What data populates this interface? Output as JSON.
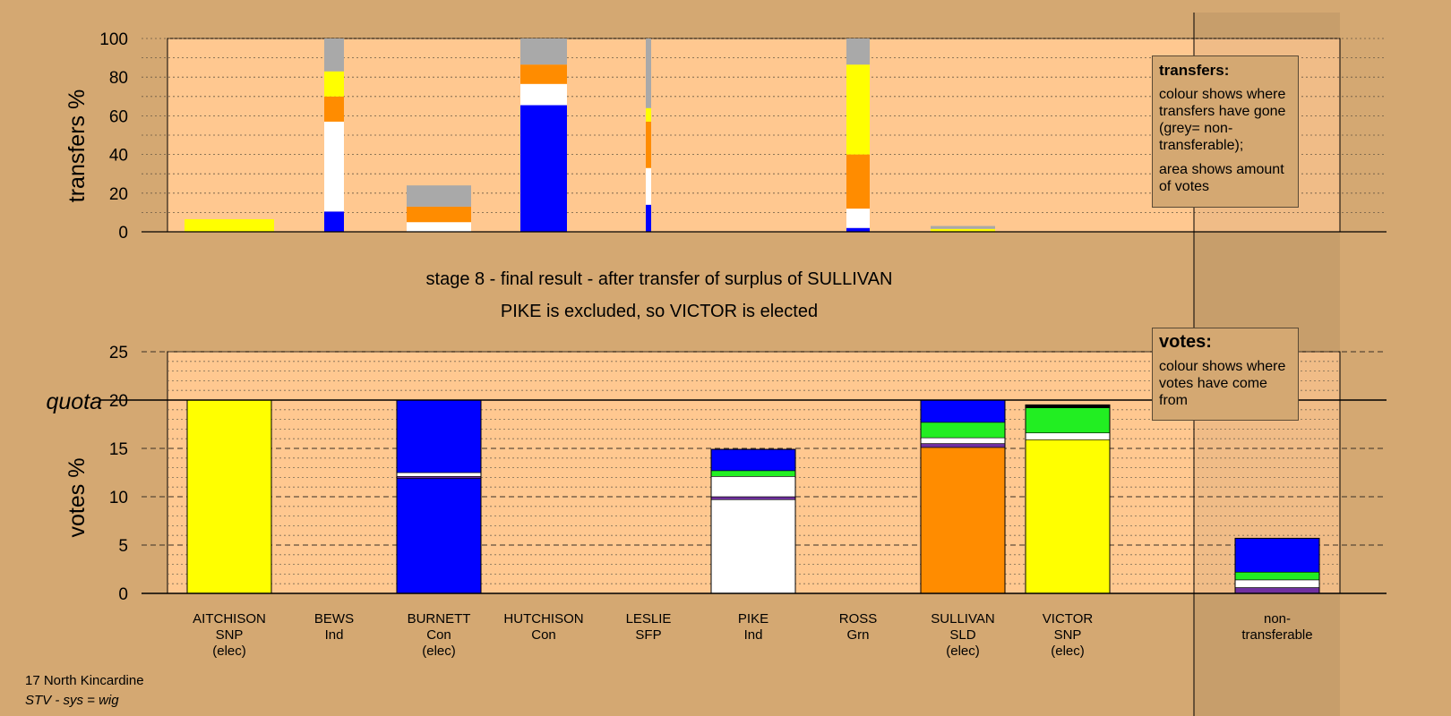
{
  "chart_data": {
    "type": "bar",
    "candidates": [
      {
        "name": "AITCHISON",
        "party": "SNP",
        "status": "(elec)"
      },
      {
        "name": "BEWS",
        "party": "Ind",
        "status": ""
      },
      {
        "name": "BURNETT",
        "party": "Con",
        "status": "(elec)"
      },
      {
        "name": "HUTCHISON",
        "party": "Con",
        "status": ""
      },
      {
        "name": "LESLIE",
        "party": "SFP",
        "status": ""
      },
      {
        "name": "PIKE",
        "party": "Ind",
        "status": ""
      },
      {
        "name": "ROSS",
        "party": "Grn",
        "status": ""
      },
      {
        "name": "SULLIVAN",
        "party": "SLD",
        "status": "(elec)"
      },
      {
        "name": "VICTOR",
        "party": "SNP",
        "status": "(elec)"
      },
      {
        "name": "non-",
        "party": "transferable",
        "status": ""
      }
    ],
    "colors": {
      "blue": "#0000ff",
      "white": "#ffffff",
      "orange": "#ff8c00",
      "yellow": "#ffff00",
      "grey": "#a9a9a9",
      "green": "#22ee22",
      "purple": "#7030a0",
      "black": "#000000"
    },
    "transfers": {
      "ylabel": "transfers %",
      "ylim": [
        0,
        100
      ],
      "ticks": [
        0,
        20,
        40,
        60,
        80,
        100
      ],
      "bars": [
        {
          "candidate": "AITCHISON",
          "segments": [
            {
              "color": "yellow",
              "from": 0,
              "to": 6.5
            }
          ]
        },
        {
          "candidate": "BEWS",
          "segments": [
            {
              "color": "blue",
              "from": 0,
              "to": 10.5
            },
            {
              "color": "white",
              "from": 10.5,
              "to": 57
            },
            {
              "color": "orange",
              "from": 57,
              "to": 70
            },
            {
              "color": "yellow",
              "from": 70,
              "to": 83
            },
            {
              "color": "grey",
              "from": 83,
              "to": 100
            }
          ]
        },
        {
          "candidate": "BURNETT",
          "segments": [
            {
              "color": "white",
              "from": 0,
              "to": 5
            },
            {
              "color": "orange",
              "from": 5,
              "to": 13
            },
            {
              "color": "grey",
              "from": 13,
              "to": 24
            }
          ]
        },
        {
          "candidate": "HUTCHISON",
          "segments": [
            {
              "color": "blue",
              "from": 0,
              "to": 65.5
            },
            {
              "color": "white",
              "from": 65.5,
              "to": 76.5
            },
            {
              "color": "orange",
              "from": 76.5,
              "to": 86.5
            },
            {
              "color": "grey",
              "from": 86.5,
              "to": 100
            }
          ]
        },
        {
          "candidate": "LESLIE",
          "segments": [
            {
              "color": "blue",
              "from": 0,
              "to": 14
            },
            {
              "color": "white",
              "from": 14,
              "to": 33
            },
            {
              "color": "orange",
              "from": 33,
              "to": 57
            },
            {
              "color": "yellow",
              "from": 57,
              "to": 64
            },
            {
              "color": "grey",
              "from": 64,
              "to": 100
            }
          ]
        },
        {
          "candidate": "PIKE",
          "segments": []
        },
        {
          "candidate": "ROSS",
          "segments": [
            {
              "color": "blue",
              "from": 0,
              "to": 2
            },
            {
              "color": "white",
              "from": 2,
              "to": 12
            },
            {
              "color": "orange",
              "from": 12,
              "to": 40
            },
            {
              "color": "yellow",
              "from": 40,
              "to": 86.5
            },
            {
              "color": "grey",
              "from": 86.5,
              "to": 100
            }
          ]
        },
        {
          "candidate": "SULLIVAN",
          "segments": [
            {
              "color": "yellow",
              "from": 0,
              "to": 1.5
            },
            {
              "color": "grey",
              "from": 1.5,
              "to": 3
            }
          ]
        }
      ]
    },
    "votes": {
      "ylabel": "votes %",
      "ylim": [
        0,
        25
      ],
      "ticks": [
        0,
        5,
        10,
        15,
        20,
        25
      ],
      "quota": 20,
      "quota_label": "quota",
      "bars": [
        {
          "candidate": "AITCHISON",
          "segments": [
            {
              "color": "yellow",
              "from": 0,
              "to": 20
            }
          ]
        },
        {
          "candidate": "BURNETT",
          "segments": [
            {
              "color": "blue",
              "from": 0,
              "to": 11.9
            },
            {
              "color": "purple",
              "from": 11.9,
              "to": 12.1
            },
            {
              "color": "white",
              "from": 12.1,
              "to": 12.5
            },
            {
              "color": "blue",
              "from": 12.5,
              "to": 20
            }
          ]
        },
        {
          "candidate": "PIKE",
          "segments": [
            {
              "color": "white",
              "from": 0,
              "to": 9.7
            },
            {
              "color": "purple",
              "from": 9.7,
              "to": 10
            },
            {
              "color": "white",
              "from": 10,
              "to": 12.1
            },
            {
              "color": "green",
              "from": 12.1,
              "to": 12.7
            },
            {
              "color": "blue",
              "from": 12.7,
              "to": 14.9
            }
          ]
        },
        {
          "candidate": "SULLIVAN",
          "segments": [
            {
              "color": "orange",
              "from": 0,
              "to": 15.1
            },
            {
              "color": "purple",
              "from": 15.1,
              "to": 15.5
            },
            {
              "color": "white",
              "from": 15.5,
              "to": 16.1
            },
            {
              "color": "green",
              "from": 16.1,
              "to": 17.7
            },
            {
              "color": "blue",
              "from": 17.7,
              "to": 20
            }
          ]
        },
        {
          "candidate": "VICTOR",
          "segments": [
            {
              "color": "yellow",
              "from": 0,
              "to": 15.9
            },
            {
              "color": "white",
              "from": 15.9,
              "to": 16.6
            },
            {
              "color": "green",
              "from": 16.6,
              "to": 19.2
            },
            {
              "color": "black",
              "from": 19.2,
              "to": 19.5
            }
          ]
        },
        {
          "candidate": "non-",
          "segments": [
            {
              "color": "purple",
              "from": 0,
              "to": 0.6
            },
            {
              "color": "white",
              "from": 0.6,
              "to": 1.4
            },
            {
              "color": "green",
              "from": 1.4,
              "to": 2.2
            },
            {
              "color": "blue",
              "from": 2.2,
              "to": 5.7
            }
          ]
        }
      ]
    }
  },
  "stage": {
    "line1": "stage 8 - final result - after transfer of surplus of SULLIVAN",
    "line2": "PIKE is excluded, so VICTOR is elected"
  },
  "legend_transfers": {
    "heading": "transfers:",
    "text1": "colour shows where transfers have gone (grey= non-transferable);",
    "text2": "area shows amount of votes"
  },
  "legend_votes": {
    "heading": "votes:",
    "text1": "colour shows where votes have come from"
  },
  "footer": {
    "ward": "17 North Kincardine",
    "system": "STV - sys = wig"
  }
}
